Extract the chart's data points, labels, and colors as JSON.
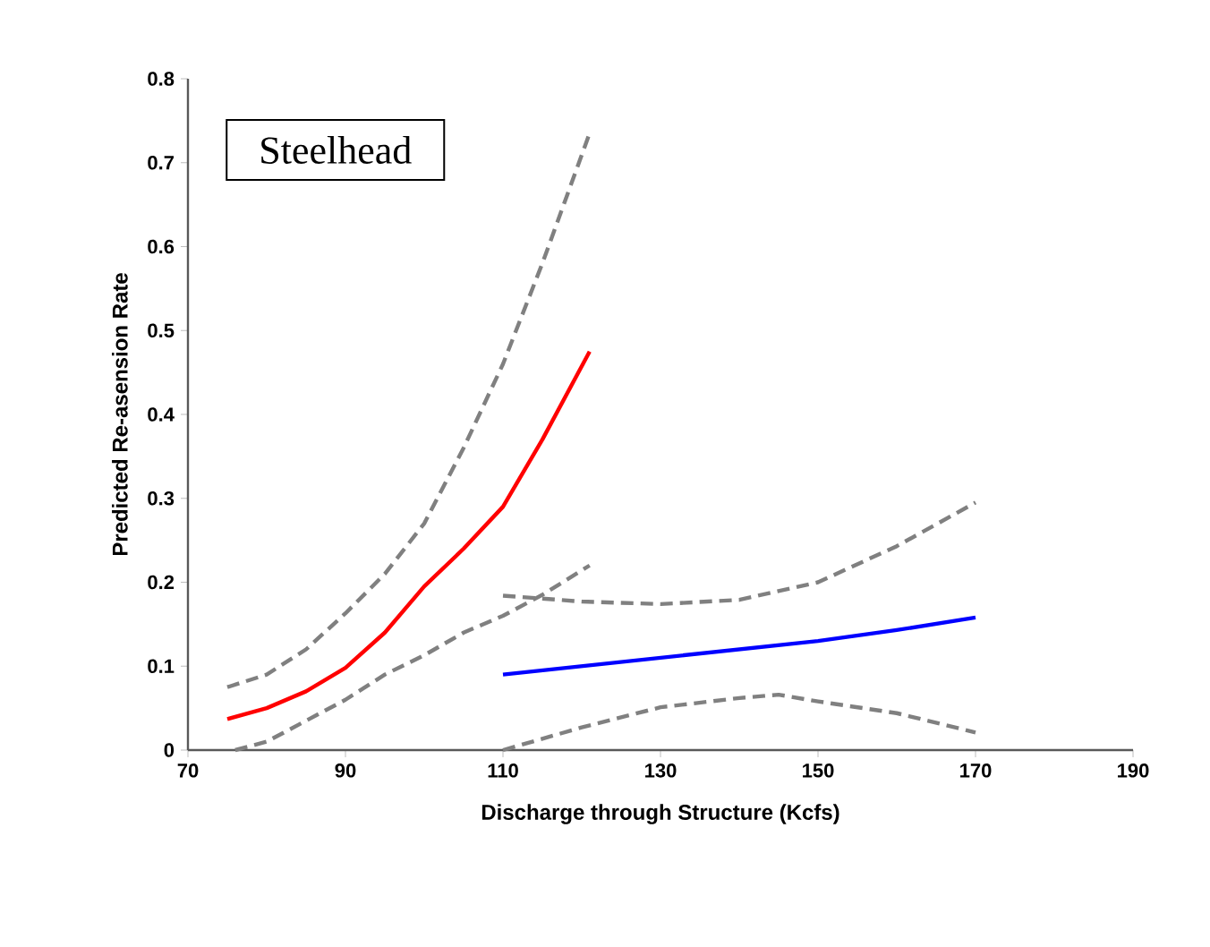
{
  "chart_data": {
    "type": "line",
    "xlabel": "Discharge through Structure (Kcfs)",
    "ylabel": "Predicted Re-asension Rate",
    "annotations": [
      "Steelhead"
    ],
    "xlim": [
      70,
      190
    ],
    "xticks": [
      70,
      90,
      110,
      130,
      150,
      170,
      190
    ],
    "ylim": [
      0,
      0.8
    ],
    "yticks": [
      0,
      0.1,
      0.2,
      0.3,
      0.4,
      0.5,
      0.6,
      0.7,
      0.8
    ],
    "series": [
      {
        "color": "#ff0000",
        "line_style": "solid",
        "x": [
          75,
          80,
          85,
          90,
          95,
          100,
          105,
          110,
          115,
          121
        ],
        "values": [
          0.037,
          0.05,
          0.07,
          0.098,
          0.14,
          0.195,
          0.24,
          0.29,
          0.37,
          0.475
        ]
      },
      {
        "color": "#808080",
        "line_style": "dashed",
        "x": [
          75,
          80,
          85,
          90,
          95,
          100,
          105,
          110,
          115,
          121
        ],
        "values": [
          0.075,
          0.09,
          0.12,
          0.163,
          0.21,
          0.27,
          0.36,
          0.46,
          0.58,
          0.735
        ]
      },
      {
        "color": "#808080",
        "line_style": "dashed",
        "x": [
          76,
          80,
          85,
          90,
          95,
          100,
          105,
          110,
          115,
          121
        ],
        "values": [
          0,
          0.01,
          0.035,
          0.06,
          0.09,
          0.113,
          0.14,
          0.16,
          0.185,
          0.22
        ]
      },
      {
        "color": "#0000ff",
        "line_style": "solid",
        "x": [
          110,
          120,
          130,
          140,
          150,
          160,
          170
        ],
        "values": [
          0.09,
          0.1,
          0.11,
          0.12,
          0.13,
          0.143,
          0.158
        ]
      },
      {
        "color": "#808080",
        "line_style": "dashed",
        "x": [
          110,
          120,
          130,
          140,
          150,
          160,
          170
        ],
        "values": [
          0.184,
          0.177,
          0.174,
          0.179,
          0.2,
          0.243,
          0.295
        ]
      },
      {
        "color": "#808080",
        "line_style": "dashed",
        "x": [
          110,
          120,
          130,
          140,
          145,
          150,
          160,
          170
        ],
        "values": [
          0,
          0.027,
          0.051,
          0.062,
          0.066,
          0.058,
          0.044,
          0.021
        ]
      }
    ]
  }
}
